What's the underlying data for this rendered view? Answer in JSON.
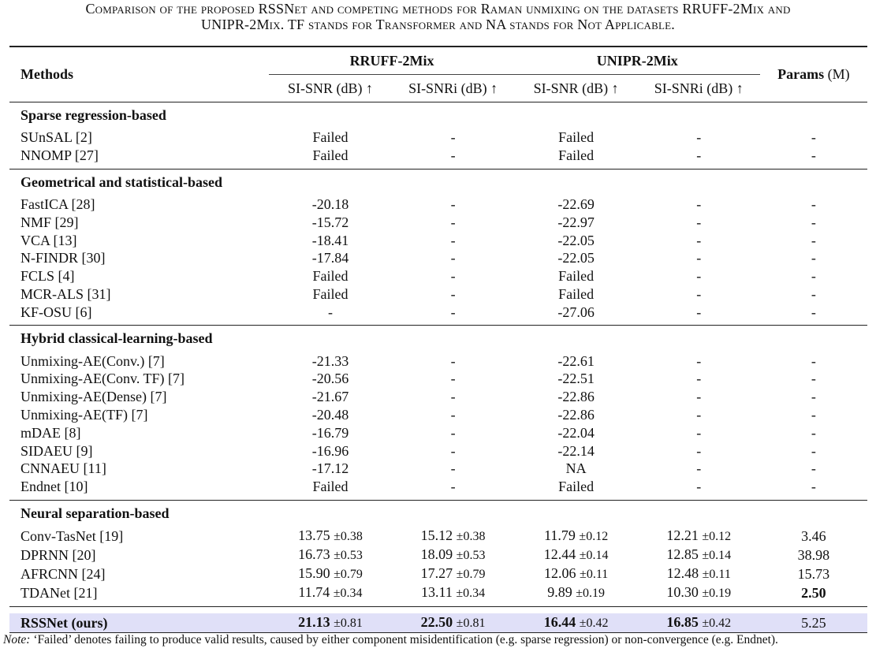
{
  "caption_line1": "Comparison of the proposed RSSNet and competing methods for Raman unmixing on the datasets RRUFF-2Mix and",
  "caption_line2": "UNIPR-2Mix. TF stands for Transformer and NA stands for Not Applicable.",
  "header": {
    "methods": "Methods",
    "group1": "RRUFF-2Mix",
    "group2": "UNIPR-2Mix",
    "params_bold": "Params",
    "params_unit": "(M)",
    "sub1": "SI-SNR (dB) ↑",
    "sub2": "SI-SNRi (dB) ↑",
    "sub3": "SI-SNR (dB) ↑",
    "sub4": "SI-SNRi (dB) ↑"
  },
  "groups": [
    {
      "title": "Sparse regression-based",
      "rows": [
        {
          "m": "SUnSAL [2]",
          "v": [
            "Failed",
            "-",
            "Failed",
            "-",
            "-"
          ]
        },
        {
          "m": "NNOMP [27]",
          "v": [
            "Failed",
            "-",
            "Failed",
            "-",
            "-"
          ]
        }
      ]
    },
    {
      "title": "Geometrical and statistical-based",
      "rows": [
        {
          "m": "FastICA [28]",
          "v": [
            "-20.18",
            "-",
            "-22.69",
            "-",
            "-"
          ]
        },
        {
          "m": "NMF [29]",
          "v": [
            "-15.72",
            "-",
            "-22.97",
            "-",
            "-"
          ]
        },
        {
          "m": "VCA [13]",
          "v": [
            "-18.41",
            "-",
            "-22.05",
            "-",
            "-"
          ]
        },
        {
          "m": "N-FINDR [30]",
          "v": [
            "-17.84",
            "-",
            "-22.05",
            "-",
            "-"
          ]
        },
        {
          "m": "FCLS [4]",
          "v": [
            "Failed",
            "-",
            "Failed",
            "-",
            "-"
          ]
        },
        {
          "m": "MCR-ALS [31]",
          "v": [
            "Failed",
            "-",
            "Failed",
            "-",
            "-"
          ]
        },
        {
          "m": "KF-OSU [6]",
          "v": [
            "-",
            "-",
            "-27.06",
            "-",
            "-"
          ]
        }
      ]
    },
    {
      "title": "Hybrid classical-learning-based",
      "rows": [
        {
          "m": "Unmixing-AE(Conv.) [7]",
          "v": [
            "-21.33",
            "-",
            "-22.61",
            "-",
            "-"
          ]
        },
        {
          "m": "Unmixing-AE(Conv. TF) [7]",
          "v": [
            "-20.56",
            "-",
            "-22.51",
            "-",
            "-"
          ]
        },
        {
          "m": "Unmixing-AE(Dense) [7]",
          "v": [
            "-21.67",
            "-",
            "-22.86",
            "-",
            "-"
          ]
        },
        {
          "m": "Unmixing-AE(TF) [7]",
          "v": [
            "-20.48",
            "-",
            "-22.86",
            "-",
            "-"
          ]
        },
        {
          "m": "mDAE [8]",
          "v": [
            "-16.79",
            "-",
            "-22.04",
            "-",
            "-"
          ]
        },
        {
          "m": "SIDAEU [9]",
          "v": [
            "-16.96",
            "-",
            "-22.14",
            "-",
            "-"
          ]
        },
        {
          "m": "CNNAEU [11]",
          "v": [
            "-17.12",
            "-",
            "NA",
            "-",
            "-"
          ]
        },
        {
          "m": "Endnet [10]",
          "v": [
            "Failed",
            "-",
            "Failed",
            "-",
            "-"
          ]
        }
      ]
    },
    {
      "title": "Neural separation-based",
      "rows": [
        {
          "m": "Conv-TasNet [19]",
          "v": [
            "13.75",
            "15.12",
            "11.79",
            "12.21",
            "3.46"
          ],
          "pm": [
            "±0.38",
            "±0.38",
            "±0.12",
            "±0.12",
            ""
          ]
        },
        {
          "m": "DPRNN [20]",
          "v": [
            "16.73",
            "18.09",
            "12.44",
            "12.85",
            "38.98"
          ],
          "pm": [
            "±0.53",
            "±0.53",
            "±0.14",
            "±0.14",
            ""
          ]
        },
        {
          "m": "AFRCNN [24]",
          "v": [
            "15.90",
            "17.27",
            "12.06",
            "12.48",
            "15.73"
          ],
          "pm": [
            "±0.79",
            "±0.79",
            "±0.11",
            "±0.11",
            ""
          ]
        },
        {
          "m": "TDANet [21]",
          "v": [
            "11.74",
            "13.11",
            "9.89",
            "10.30",
            "2.50"
          ],
          "pm": [
            "±0.34",
            "±0.34",
            "±0.19",
            "±0.19",
            ""
          ],
          "bold": [
            false,
            false,
            false,
            false,
            true
          ]
        }
      ]
    }
  ],
  "ours": {
    "m": "RSSNet (ours)",
    "v": [
      "21.13",
      "22.50",
      "16.44",
      "16.85",
      "5.25"
    ],
    "pm": [
      "±0.81",
      "±0.81",
      "±0.42",
      "±0.42",
      ""
    ],
    "bold": [
      true,
      true,
      true,
      true,
      false
    ]
  },
  "note_label": "Note:",
  "note_text": "‘Failed’ denotes failing to produce valid results, caused by either component misidentification (e.g. sparse regression) or non-convergence (e.g. Endnet).",
  "colors": {
    "highlight": "#e0e0f8"
  }
}
